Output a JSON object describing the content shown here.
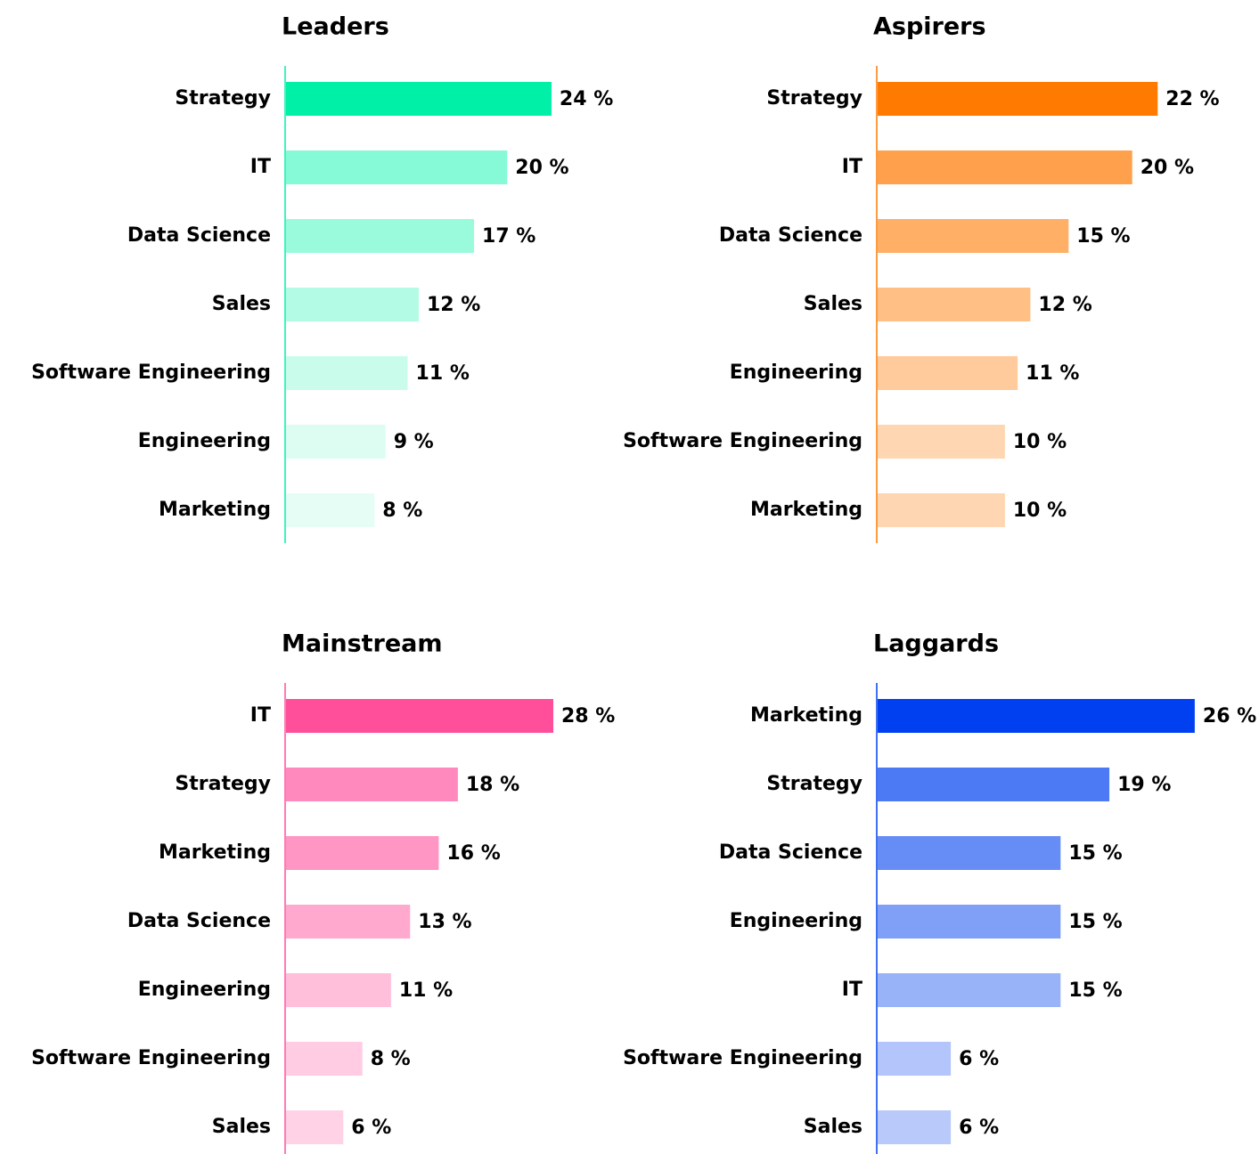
{
  "chart_data": [
    {
      "type": "bar",
      "title": "Leaders",
      "categories": [
        "Strategy",
        "IT",
        "Data Science",
        "Sales",
        "Software Engineering",
        "Engineering",
        "Marketing"
      ],
      "values": [
        24,
        20,
        17,
        12,
        11,
        9,
        8
      ],
      "value_labels": [
        "24 %",
        "20 %",
        "17 %",
        "12 %",
        "11 %",
        "9 %",
        "8 %"
      ],
      "colors": [
        "#00F0A8",
        "#86F9D6",
        "#9AFADC",
        "#B3FBE4",
        "#CAFCEC",
        "#DDFDF3",
        "#E5FDF5"
      ],
      "xlim": [
        0,
        29
      ]
    },
    {
      "type": "bar",
      "title": "Aspirers",
      "categories": [
        "Strategy",
        "IT",
        "Data Science",
        "Sales",
        "Engineering",
        "Software Engineering",
        "Marketing"
      ],
      "values": [
        22,
        20,
        15,
        12,
        11,
        10,
        10
      ],
      "value_labels": [
        "22 %",
        "20 %",
        "15 %",
        "12 %",
        "11 %",
        "10 %",
        "10 %"
      ],
      "colors": [
        "#FF7A00",
        "#FFA04D",
        "#FFAF66",
        "#FFBF85",
        "#FFCA9C",
        "#FFD6B2",
        "#FFD6B2"
      ],
      "xlim": [
        0,
        25.2
      ]
    },
    {
      "type": "bar",
      "title": "Mainstream",
      "categories": [
        "IT",
        "Strategy",
        "Marketing",
        "Data Science",
        "Engineering",
        "Software Engineering",
        "Sales"
      ],
      "values": [
        28,
        18,
        16,
        13,
        11,
        8,
        6
      ],
      "value_labels": [
        "28 %",
        "18 %",
        "16 %",
        "13 %",
        "11 %",
        "8 %",
        "6 %"
      ],
      "colors": [
        "#FF4F9B",
        "#FF88BC",
        "#FF96C3",
        "#FFA9CF",
        "#FFBFDB",
        "#FFCCE3",
        "#FFD2E6"
      ],
      "xlim": [
        0,
        33.6
      ]
    },
    {
      "type": "bar",
      "title": "Laggards",
      "categories": [
        "Marketing",
        "Strategy",
        "Data Science",
        "Engineering",
        "IT",
        "Software Engineering",
        "Sales"
      ],
      "values": [
        26,
        19,
        15,
        15,
        15,
        6,
        6
      ],
      "value_labels": [
        "26 %",
        "19 %",
        "15 %",
        "15 %",
        "15 %",
        "6 %",
        "6 %"
      ],
      "colors": [
        "#0040F0",
        "#4C7AF4",
        "#668DF5",
        "#809FF7",
        "#99B3F8",
        "#B3C5FA",
        "#B8C9FA"
      ],
      "xlim": [
        0,
        26.3
      ]
    }
  ]
}
